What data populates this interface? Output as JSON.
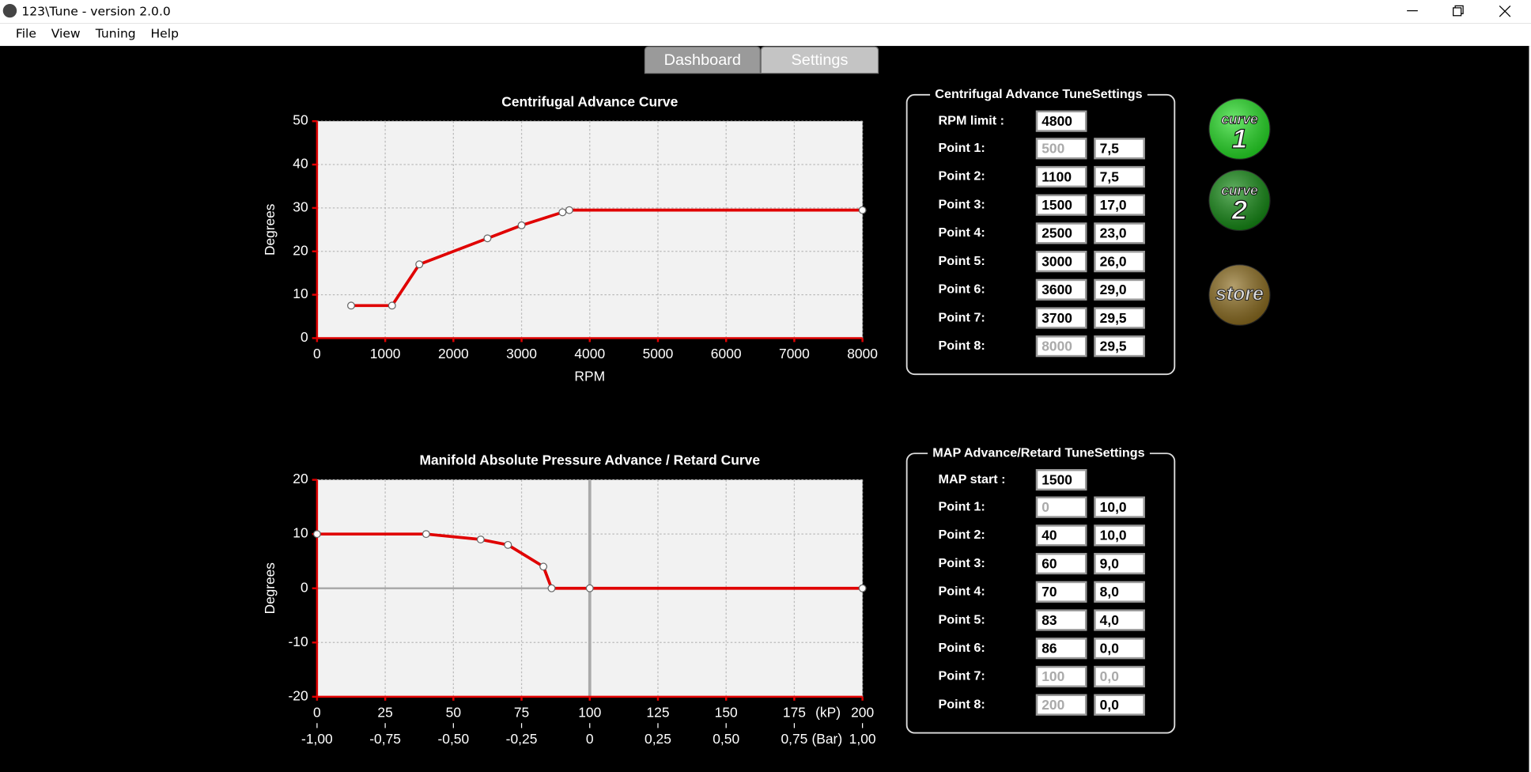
{
  "window": {
    "title": "123\\Tune - version 2.0.0"
  },
  "menu": [
    "File",
    "View",
    "Tuning",
    "Help"
  ],
  "tabs": [
    {
      "label": "Dashboard",
      "active": false
    },
    {
      "label": "Settings",
      "active": true
    }
  ],
  "chart_data": [
    {
      "type": "line",
      "title": "Centrifugal Advance Curve",
      "x_label": "RPM",
      "y_label": "Degrees",
      "x": [
        500,
        1100,
        1500,
        2500,
        3000,
        3600,
        3700,
        8000
      ],
      "values": [
        7.5,
        7.5,
        17,
        23,
        26,
        29,
        29.5,
        29.5
      ],
      "color": "#e00000",
      "markers": true,
      "xlim": [
        0,
        8000
      ],
      "xticks": [
        0,
        1000,
        2000,
        3000,
        4000,
        5000,
        6000,
        7000,
        8000
      ],
      "ylim": [
        0,
        50
      ],
      "yticks": [
        0,
        10,
        20,
        30,
        40,
        50
      ],
      "grid": true
    },
    {
      "type": "line",
      "title": "Manifold Absolute Pressure Advance / Retard Curve",
      "x_label": "(kP)",
      "x2_label": "(Bar)",
      "y_label": "Degrees",
      "x": [
        0,
        40,
        60,
        70,
        83,
        86,
        100,
        200
      ],
      "values": [
        10,
        10,
        9,
        8,
        4,
        0,
        0,
        0
      ],
      "color": "#e00000",
      "markers": true,
      "zero_lines": true,
      "xlim": [
        0,
        200
      ],
      "xticks": [
        0,
        25,
        50,
        75,
        100,
        125,
        150,
        175,
        200
      ],
      "x2lim": [
        -1,
        1
      ],
      "x2ticks": [
        {
          "value": -1,
          "label": "-1,00"
        },
        {
          "value": -0.75,
          "label": "-0,75"
        },
        {
          "value": -0.5,
          "label": "-0,50"
        },
        {
          "value": -0.25,
          "label": "-0,25"
        },
        0,
        {
          "value": 0.25,
          "label": "0,25"
        },
        {
          "value": 0.5,
          "label": "0,50"
        },
        {
          "value": 0.75,
          "label": "0,75"
        },
        {
          "value": 1,
          "label": "1,00"
        }
      ],
      "ylim": [
        -20,
        20
      ],
      "yticks": [
        -20,
        -10,
        0,
        10,
        20
      ],
      "grid": true
    }
  ],
  "panels": [
    {
      "title": "Centrifugal Advance TuneSettings",
      "first_label": "RPM limit :",
      "first_value": "4800",
      "points": [
        {
          "label": "Point 1:",
          "x": "500",
          "y": "7,5",
          "x_enabled": false,
          "y_enabled": true
        },
        {
          "label": "Point 2:",
          "x": "1100",
          "y": "7,5",
          "x_enabled": true,
          "y_enabled": true
        },
        {
          "label": "Point 3:",
          "x": "1500",
          "y": "17,0",
          "x_enabled": true,
          "y_enabled": true
        },
        {
          "label": "Point 4:",
          "x": "2500",
          "y": "23,0",
          "x_enabled": true,
          "y_enabled": true
        },
        {
          "label": "Point 5:",
          "x": "3000",
          "y": "26,0",
          "x_enabled": true,
          "y_enabled": true
        },
        {
          "label": "Point 6:",
          "x": "3600",
          "y": "29,0",
          "x_enabled": true,
          "y_enabled": true
        },
        {
          "label": "Point 7:",
          "x": "3700",
          "y": "29,5",
          "x_enabled": true,
          "y_enabled": true
        },
        {
          "label": "Point 8:",
          "x": "8000",
          "y": "29,5",
          "x_enabled": false,
          "y_enabled": true
        }
      ]
    },
    {
      "title": "MAP Advance/Retard TuneSettings",
      "first_label": "MAP start :",
      "first_value": "1500",
      "points": [
        {
          "label": "Point 1:",
          "x": "0",
          "y": "10,0",
          "x_enabled": false,
          "y_enabled": true
        },
        {
          "label": "Point 2:",
          "x": "40",
          "y": "10,0",
          "x_enabled": true,
          "y_enabled": true
        },
        {
          "label": "Point 3:",
          "x": "60",
          "y": "9,0",
          "x_enabled": true,
          "y_enabled": true
        },
        {
          "label": "Point 4:",
          "x": "70",
          "y": "8,0",
          "x_enabled": true,
          "y_enabled": true
        },
        {
          "label": "Point 5:",
          "x": "83",
          "y": "4,0",
          "x_enabled": true,
          "y_enabled": true
        },
        {
          "label": "Point 6:",
          "x": "86",
          "y": "0,0",
          "x_enabled": true,
          "y_enabled": true
        },
        {
          "label": "Point 7:",
          "x": "100",
          "y": "0,0",
          "x_enabled": false,
          "y_enabled": false
        },
        {
          "label": "Point 8:",
          "x": "200",
          "y": "0,0",
          "x_enabled": false,
          "y_enabled": true
        }
      ]
    }
  ],
  "buttons": [
    {
      "word": "curve",
      "number": "1",
      "color": "#22dd22"
    },
    {
      "word": "curve",
      "number": "2",
      "color": "#118811"
    },
    {
      "word": "store",
      "color": "#8a6a1c"
    }
  ]
}
